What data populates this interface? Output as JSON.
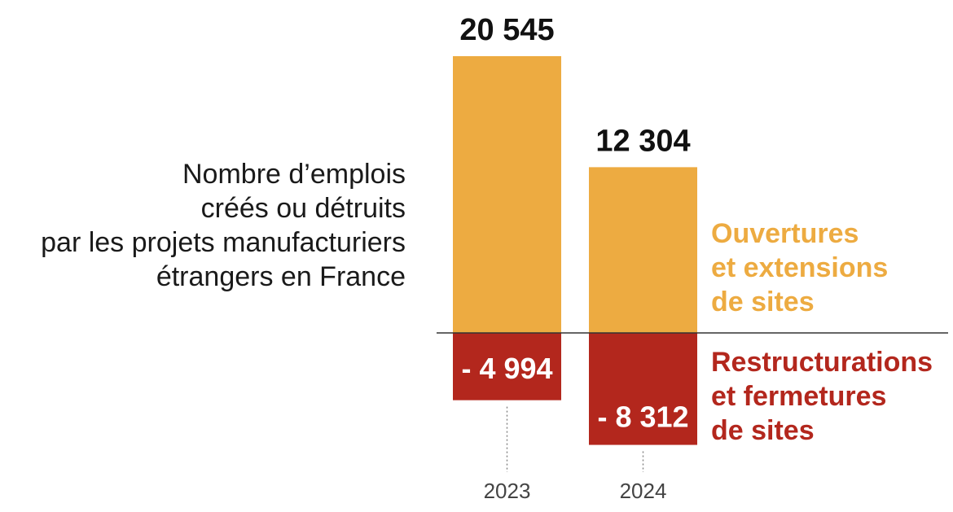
{
  "description": [
    "Nombre d’emplois",
    "créés ou détruits",
    "par les projets manufacturiers",
    "étrangers en France"
  ],
  "legend": {
    "positive": [
      "Ouvertures",
      "et extensions",
      "de sites"
    ],
    "negative": [
      "Restructurations",
      "et fermetures",
      "de sites"
    ]
  },
  "colors": {
    "positive": "#edab41",
    "negative": "#b3271d",
    "baseline": "#333333",
    "connector": "#888888"
  },
  "chart_data": {
    "type": "bar",
    "categories": [
      "2023",
      "2024"
    ],
    "series": [
      {
        "name": "Ouvertures et extensions de sites",
        "values": [
          20545,
          12304
        ],
        "labels": [
          "20 545",
          "12 304"
        ]
      },
      {
        "name": "Restructurations et fermetures de sites",
        "values": [
          -4994,
          -8312
        ],
        "labels": [
          "- 4 994",
          "- 8 312"
        ]
      }
    ],
    "title": "",
    "xlabel": "",
    "ylabel": "",
    "ylim": [
      -8312,
      20545
    ],
    "grid": false,
    "legend_position": "right"
  }
}
